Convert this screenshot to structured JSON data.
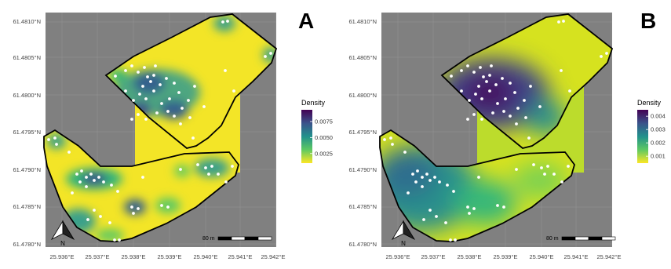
{
  "panels": [
    {
      "id": "A",
      "letter": "A",
      "legend_title": "Density",
      "legend_ticks": [
        "0.0075",
        "0.0050",
        "0.0025"
      ],
      "legend_fracs": [
        0.78,
        0.48,
        0.18
      ],
      "y_ticks": [
        "61.4810°N",
        "61.4805°N",
        "61.4800°N",
        "61.4795°N",
        "61.4790°N",
        "61.4785°N",
        "61.4780°N"
      ],
      "x_ticks": [
        "25.936°E",
        "25.937°E",
        "25.938°E",
        "25.939°E",
        "25.940°E",
        "25.941°E",
        "25.942°E"
      ],
      "scale_label": "80 m",
      "north_label": "N",
      "colors": {
        "background": "#808080",
        "low": "#f3e527",
        "mid": "#21908c",
        "high": "#3b3a86",
        "peak": "#440154"
      }
    },
    {
      "id": "B",
      "letter": "B",
      "legend_title": "Density",
      "legend_ticks": [
        "0.004",
        "0.003",
        "0.002",
        "0.001"
      ],
      "legend_fracs": [
        0.88,
        0.63,
        0.38,
        0.13
      ],
      "y_ticks": [
        "61.4810°N",
        "61.4805°N",
        "61.4800°N",
        "61.4795°N",
        "61.4790°N",
        "61.4785°N",
        "61.4780°N"
      ],
      "x_ticks": [
        "25.936°E",
        "25.937°E",
        "25.938°E",
        "25.939°E",
        "25.940°E",
        "25.941°E",
        "25.942°E"
      ],
      "scale_label": "80 m",
      "north_label": "N",
      "colors": {
        "background": "#808080",
        "low": "#e7e419",
        "mid": "#2b8f8c",
        "high": "#3e4a89",
        "peak": "#440154"
      }
    }
  ]
}
